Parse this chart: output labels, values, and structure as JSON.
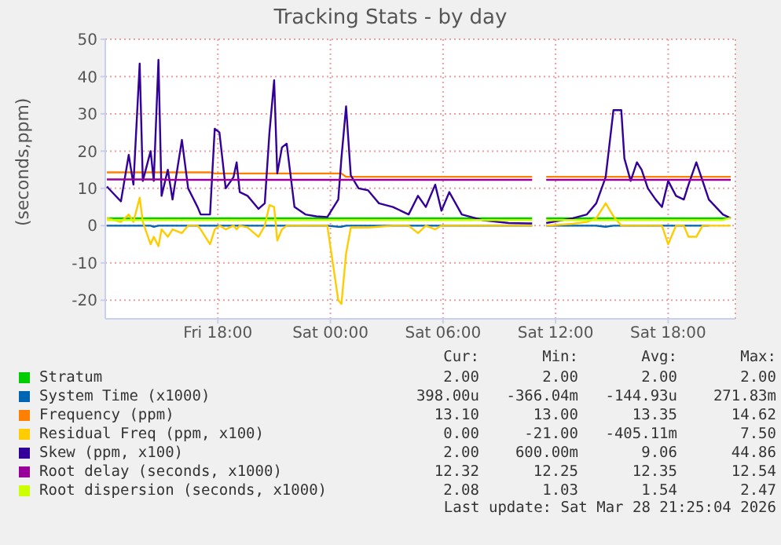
{
  "chart_data": {
    "type": "line",
    "title": "Tracking Stats - by day",
    "ylabel": "(seconds,ppm)",
    "x": [
      "2026-03-27T12:05",
      "2026-03-27T12:50",
      "2026-03-27T13:15",
      "2026-03-27T13:30",
      "2026-03-27T13:50",
      "2026-03-27T14:00",
      "2026-03-27T14:25",
      "2026-03-27T14:35",
      "2026-03-27T14:50",
      "2026-03-27T15:00",
      "2026-03-27T15:20",
      "2026-03-27T15:35",
      "2026-03-27T16:05",
      "2026-03-27T16:25",
      "2026-03-27T16:55",
      "2026-03-27T17:05",
      "2026-03-27T17:35",
      "2026-03-27T17:50",
      "2026-03-27T18:05",
      "2026-03-27T18:25",
      "2026-03-27T18:50",
      "2026-03-27T19:00",
      "2026-03-27T19:10",
      "2026-03-27T19:35",
      "2026-03-27T20:10",
      "2026-03-27T20:30",
      "2026-03-27T20:45",
      "2026-03-27T21:00",
      "2026-03-27T21:10",
      "2026-03-27T21:25",
      "2026-03-27T21:40",
      "2026-03-27T22:05",
      "2026-03-27T22:40",
      "2026-03-27T23:15",
      "2026-03-27T23:50",
      "2026-03-28T00:25",
      "2026-03-28T00:35",
      "2026-03-28T00:50",
      "2026-03-28T01:05",
      "2026-03-28T01:30",
      "2026-03-28T02:00",
      "2026-03-28T02:35",
      "2026-03-28T03:20",
      "2026-03-28T04:10",
      "2026-03-28T04:40",
      "2026-03-28T05:05",
      "2026-03-28T05:35",
      "2026-03-28T05:55",
      "2026-03-28T06:20",
      "2026-03-28T07:00",
      "2026-03-28T08:05",
      "2026-03-28T09:30",
      "2026-03-28T10:35",
      "2026-03-28T10:45",
      "2026-03-28T11:00",
      "2026-03-28T11:30",
      "2026-03-28T12:55",
      "2026-03-28T13:40",
      "2026-03-28T14:10",
      "2026-03-28T14:40",
      "2026-03-28T15:05",
      "2026-03-28T15:30",
      "2026-03-28T15:40",
      "2026-03-28T16:00",
      "2026-03-28T16:20",
      "2026-03-28T16:35",
      "2026-03-28T16:55",
      "2026-03-28T17:20",
      "2026-03-28T17:40",
      "2026-03-28T18:00",
      "2026-03-28T18:25",
      "2026-03-28T18:50",
      "2026-03-28T19:05",
      "2026-03-28T19:30",
      "2026-03-28T19:50",
      "2026-03-28T20:10",
      "2026-03-28T20:55",
      "2026-03-28T21:20"
    ],
    "series": [
      {
        "name": "Stratum",
        "color": "#00cc00",
        "values": [
          2,
          2,
          2,
          2,
          2,
          2,
          2,
          2,
          2,
          2,
          2,
          2,
          2,
          2,
          2,
          2,
          2,
          2,
          2,
          2,
          2,
          2,
          2,
          2,
          2,
          2,
          2,
          2,
          2,
          2,
          2,
          2,
          2,
          2,
          2,
          2,
          2,
          2,
          2,
          2,
          2,
          2,
          2,
          2,
          2,
          2,
          2,
          2,
          2,
          2,
          2,
          2,
          2,
          2,
          null,
          2,
          2,
          2,
          2,
          2,
          2,
          2,
          2,
          2,
          2,
          2,
          2,
          2,
          2,
          2,
          2,
          2,
          2,
          2,
          2,
          2,
          2,
          2
        ]
      },
      {
        "name": "System Time (x1000)",
        "color": "#0066b3",
        "values": [
          0,
          0,
          0,
          0,
          0,
          0,
          0,
          -0.3,
          0,
          0,
          0,
          0,
          0,
          0,
          0,
          0,
          0,
          0,
          0,
          0,
          0,
          0,
          0,
          0,
          0,
          0,
          0,
          0,
          0,
          0,
          0,
          0,
          0,
          0,
          0,
          -0.3,
          -0.3,
          0,
          0,
          0,
          0,
          0,
          0,
          0,
          0,
          0,
          0,
          0,
          0,
          0,
          0,
          0,
          0,
          0,
          null,
          0,
          0,
          0,
          0,
          -0.3,
          0,
          0,
          0,
          0,
          0,
          0,
          0,
          0,
          0,
          0,
          0,
          0,
          0,
          0,
          0,
          0,
          null,
          null
        ]
      },
      {
        "name": "Frequency (ppm)",
        "color": "#ff8000",
        "values": [
          14.3,
          14.3,
          14.3,
          14.3,
          14.3,
          14.3,
          14.3,
          14.3,
          14.3,
          14.3,
          14.3,
          14.3,
          14.3,
          14.3,
          14.3,
          14.3,
          14.3,
          14,
          14,
          14,
          14,
          14,
          14,
          14,
          14,
          14,
          14,
          14,
          14,
          14,
          14,
          14,
          14,
          14,
          14,
          14,
          14,
          13.1,
          13.1,
          13.1,
          13.1,
          13.1,
          13.1,
          13.1,
          13.1,
          13.1,
          13.1,
          13.1,
          13.1,
          13.1,
          13.1,
          13.1,
          13.1,
          13.1,
          null,
          13.1,
          13.1,
          13.1,
          13.1,
          13.1,
          13.1,
          13.1,
          13.1,
          13.1,
          13.1,
          13.1,
          13.1,
          13.1,
          13.1,
          13.1,
          13.1,
          13.1,
          13.1,
          13.1,
          13.1,
          13.1,
          13.1,
          13.1
        ]
      },
      {
        "name": "Residual Freq (ppm, x100)",
        "color": "#ffcc00",
        "values": [
          2,
          1,
          3,
          1,
          7.5,
          1,
          -5,
          -3,
          -5.5,
          -1,
          -3,
          -1,
          -2,
          0,
          0,
          -1,
          -5,
          -1,
          0,
          -1,
          0,
          -1,
          0,
          -0.5,
          -3,
          0,
          5.5,
          5,
          -4,
          -1,
          0,
          0,
          0,
          0,
          0,
          -20,
          -21,
          -7.5,
          -0.5,
          -0.5,
          -0.5,
          -0.3,
          0,
          0,
          -2,
          0,
          -1,
          0,
          0,
          0,
          0,
          0,
          0,
          0,
          null,
          0,
          0.5,
          1,
          2,
          6,
          2.5,
          0,
          0,
          0,
          0,
          0,
          0,
          0,
          0,
          -5,
          0,
          0,
          -3,
          -3,
          0,
          0,
          0,
          0
        ]
      },
      {
        "name": "Skew (ppm, x100)",
        "color": "#330099",
        "values": [
          10.5,
          6.5,
          19,
          11,
          43.5,
          12,
          20,
          12,
          44.5,
          8,
          15,
          7,
          23,
          10,
          5,
          3,
          3,
          26,
          25,
          10,
          13,
          17,
          9,
          8,
          4.5,
          6,
          25,
          39,
          14,
          21,
          22,
          5,
          3,
          2.5,
          2.3,
          7,
          18,
          32,
          13.5,
          10,
          9.5,
          6,
          5,
          3,
          8,
          5,
          11,
          4,
          9,
          3,
          1.5,
          0.7,
          0.6,
          0.6,
          null,
          0.7,
          2,
          3,
          6,
          13,
          31,
          31,
          18,
          12,
          17,
          15,
          10,
          7,
          5,
          12,
          8,
          7,
          11,
          17,
          12,
          7,
          3,
          2
        ]
      },
      {
        "name": "Root delay (seconds, x1000)",
        "color": "#990099",
        "values": [
          12.4,
          12.4,
          12.4,
          12.4,
          12.4,
          12.4,
          12.4,
          12.4,
          12.4,
          12.4,
          12.3,
          12.3,
          12.3,
          12.3,
          12.3,
          12.3,
          12.3,
          12.3,
          12.3,
          12.3,
          12.3,
          12.3,
          12.3,
          12.3,
          12.3,
          12.3,
          12.3,
          12.3,
          12.3,
          12.3,
          12.3,
          12.3,
          12.3,
          12.3,
          12.3,
          12.3,
          12.3,
          12.3,
          12.3,
          12.3,
          12.3,
          12.3,
          12.3,
          12.3,
          12.3,
          12.3,
          12.3,
          12.3,
          12.3,
          12.3,
          12.3,
          12.3,
          12.3,
          12.3,
          null,
          12.3,
          12.3,
          12.3,
          12.3,
          12.3,
          12.3,
          12.3,
          12.3,
          12.3,
          12.3,
          12.3,
          12.3,
          12.3,
          12.3,
          12.3,
          12.3,
          12.3,
          12.3,
          12.3,
          12.3,
          12.3,
          12.3,
          12.3
        ]
      },
      {
        "name": "Root dispersion (seconds, x1000)",
        "color": "#ccff00",
        "values": [
          1.5,
          1.5,
          1.5,
          1.5,
          1.5,
          1.5,
          1.5,
          1.5,
          1.5,
          1.5,
          1.5,
          1.5,
          1.5,
          1.5,
          1.5,
          1.5,
          1.5,
          1.5,
          1.5,
          1.5,
          1.5,
          1.5,
          1.5,
          1.5,
          1.5,
          1.5,
          1.5,
          1.5,
          1.5,
          1.5,
          1.5,
          1.5,
          1.5,
          1.5,
          1.5,
          1.5,
          1.5,
          1.5,
          1.5,
          1.5,
          1.5,
          1.5,
          1.5,
          1.5,
          1.5,
          1.5,
          1.5,
          1.5,
          1.5,
          1.5,
          1.5,
          1.5,
          1.5,
          1.5,
          null,
          1.5,
          1.5,
          1.5,
          1.5,
          1.5,
          1.5,
          1.5,
          1.5,
          1.5,
          1.5,
          1.5,
          1.5,
          1.5,
          1.5,
          1.5,
          1.5,
          1.5,
          1.5,
          1.5,
          1.5,
          1.5,
          1.5,
          2.1
        ]
      }
    ],
    "xlim": [
      "2026-03-27T12:00",
      "2026-03-28T21:35"
    ],
    "xticks": [
      {
        "value": "2026-03-27T18:00",
        "label": "Fri 18:00"
      },
      {
        "value": "2026-03-28T00:00",
        "label": "Sat 00:00"
      },
      {
        "value": "2026-03-28T06:00",
        "label": "Sat 06:00"
      },
      {
        "value": "2026-03-28T12:00",
        "label": "Sat 12:00"
      },
      {
        "value": "2026-03-28T18:00",
        "label": "Sat 18:00"
      }
    ],
    "ylim": [
      -25,
      50
    ],
    "yticks": [
      -20,
      -10,
      0,
      10,
      20,
      30,
      40,
      50
    ],
    "grid": true,
    "legend": "bottom",
    "annotations": [
      "Cur:",
      "Min:",
      "Avg:",
      "Max:",
      "2.00",
      "2.00",
      "2.00",
      "2.00",
      "398.00u",
      "-366.04m",
      "-144.93u",
      "271.83m",
      "13.10",
      "13.00",
      "13.35",
      "14.62",
      "0.00",
      "-21.00",
      "-405.11m",
      "7.50",
      "2.00",
      "600.00m",
      "9.06",
      "44.86",
      "12.32",
      "12.25",
      "12.35",
      "12.54",
      "2.08",
      "1.03",
      "1.54",
      "2.47",
      "Last update: Sat Mar 28 21:25:04 2026"
    ]
  }
}
